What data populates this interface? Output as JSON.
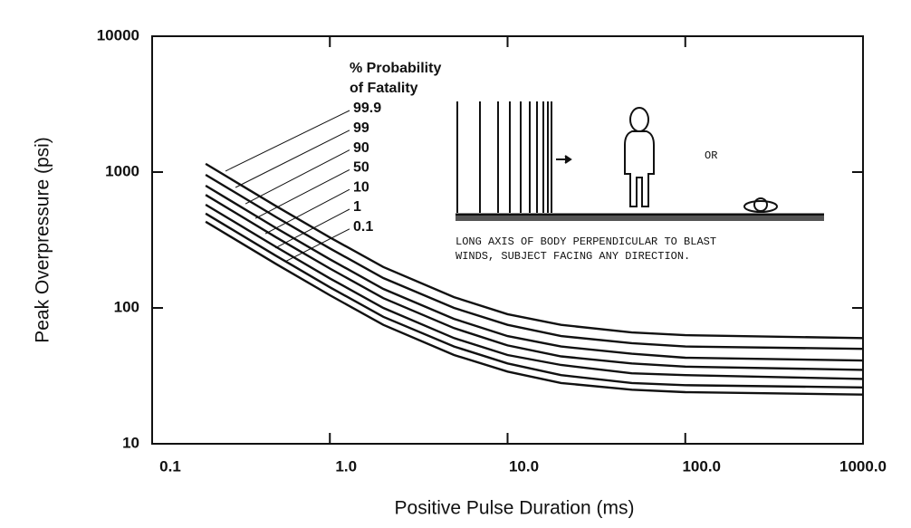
{
  "chart_data": {
    "type": "line",
    "x_label": "Positive Pulse Duration (ms)",
    "y_label": "Peak Overpressure (psi)",
    "legend_title": [
      "% Probability",
      "of Fatality"
    ],
    "annotation": [
      "LONG AXIS OF BODY PERPENDICULAR TO BLAST",
      "WINDS, SUBJECT FACING ANY DIRECTION."
    ],
    "diagram_label": "OR",
    "x": [
      0.2,
      0.5,
      1,
      2,
      5,
      10,
      20,
      50,
      100,
      1000
    ],
    "series": [
      {
        "name": "99.9",
        "color": "#111111",
        "values": [
          1150,
          560,
          330,
          200,
          120,
          90,
          75,
          66,
          63,
          60
        ]
      },
      {
        "name": "99",
        "color": "#111111",
        "values": [
          955,
          465,
          274,
          166,
          100,
          75,
          62,
          55,
          52,
          50
        ]
      },
      {
        "name": "90",
        "color": "#111111",
        "values": [
          794,
          386,
          228,
          138,
          83,
          62,
          52,
          46,
          43,
          41
        ]
      },
      {
        "name": "50",
        "color": "#111111",
        "values": [
          679,
          330,
          195,
          118,
          71,
          53,
          44,
          39,
          37,
          35
        ]
      },
      {
        "name": "10",
        "color": "#111111",
        "values": [
          575,
          280,
          165,
          100,
          60,
          45,
          38,
          33,
          32,
          30
        ]
      },
      {
        "name": "1",
        "color": "#111111",
        "values": [
          495,
          241,
          142,
          86,
          52,
          39,
          32,
          28,
          27,
          26
        ]
      },
      {
        "name": "0.1",
        "color": "#111111",
        "values": [
          431,
          210,
          124,
          75,
          45,
          34,
          28,
          25,
          24,
          23
        ]
      }
    ],
    "xlim": [
      0.1,
      1000
    ],
    "ylim": [
      10,
      10000
    ],
    "xticks": [
      0.1,
      {
        "value": 1,
        "label": "1.0"
      },
      {
        "value": 10,
        "label": "10.0"
      },
      {
        "value": 100,
        "label": "100.0"
      },
      {
        "value": 1000,
        "label": "1000.0"
      }
    ],
    "yticks": [
      10,
      100,
      1000,
      10000
    ],
    "xscale": "log",
    "yscale": "log"
  }
}
